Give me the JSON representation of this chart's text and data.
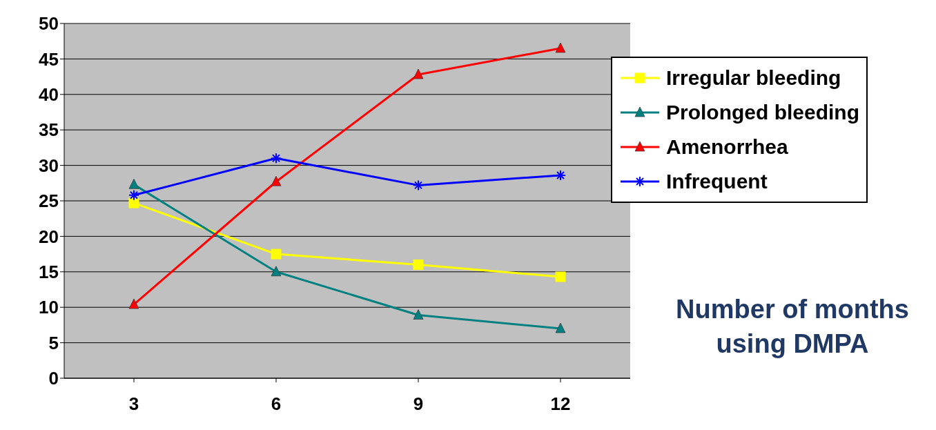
{
  "chart_data": {
    "type": "line",
    "annotations": [
      "Number of months using DMPA"
    ],
    "categories": [
      "3",
      "6",
      "9",
      "12"
    ],
    "series": [
      {
        "name": "Irregular bleeding",
        "color": "#ffff00",
        "marker": "square",
        "values": [
          24.7,
          17.5,
          16.0,
          14.3
        ]
      },
      {
        "name": "Prolonged bleeding",
        "color": "#008080",
        "marker": "triangle",
        "values": [
          27.3,
          15.0,
          8.9,
          7.0
        ]
      },
      {
        "name": "Amenorrhea",
        "color": "#ff0000",
        "marker": "triangle",
        "values": [
          10.4,
          27.7,
          42.8,
          46.5
        ]
      },
      {
        "name": "Infrequent",
        "color": "#0000ff",
        "marker": "cross",
        "values": [
          25.8,
          31.0,
          27.2,
          28.6
        ]
      }
    ],
    "ylim": [
      0,
      50
    ],
    "yticks": [
      0,
      5,
      10,
      15,
      20,
      25,
      30,
      35,
      40,
      45,
      50
    ],
    "grid": "y",
    "legend": "right"
  }
}
